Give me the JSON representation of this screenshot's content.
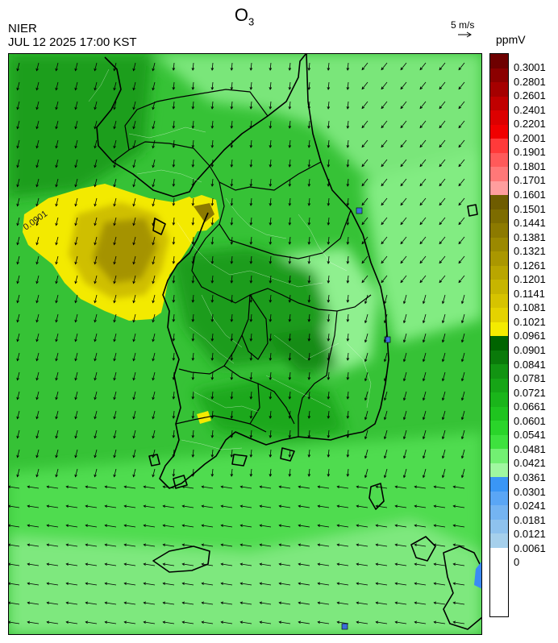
{
  "header": {
    "species_main": "O",
    "species_sub": "3",
    "source": "NIER",
    "datetime": "JUL 12 2025 17:00 KST"
  },
  "wind": {
    "scale_label": "5 m/s",
    "arrow_icon": "arrow-right-icon"
  },
  "colorbar": {
    "unit": "ppmV",
    "ticks": [
      "0.3001",
      "0.2801",
      "0.2601",
      "0.2401",
      "0.2201",
      "0.2001",
      "0.1901",
      "0.1801",
      "0.1701",
      "0.1601",
      "0.1501",
      "0.1441",
      "0.1381",
      "0.1321",
      "0.1261",
      "0.1201",
      "0.1141",
      "0.1081",
      "0.1021",
      "0.0961",
      "0.0901",
      "0.0841",
      "0.0781",
      "0.0721",
      "0.0661",
      "0.0601",
      "0.0541",
      "0.0481",
      "0.0421",
      "0.0361",
      "0.0301",
      "0.0241",
      "0.0181",
      "0.0121",
      "0.0061",
      "0"
    ],
    "colors": [
      "#6e0000",
      "#8b0000",
      "#a50000",
      "#c00000",
      "#dc0000",
      "#f00000",
      "#ff3a3a",
      "#ff5a5a",
      "#ff7878",
      "#ff9e9e",
      "#6e5c00",
      "#7d6c00",
      "#8c7a00",
      "#9b8900",
      "#aa9700",
      "#b9a600",
      "#c7b500",
      "#d6c300",
      "#e4d200",
      "#f4eb00",
      "#006400",
      "#0a7a0a",
      "#129412",
      "#16a516",
      "#1ab51a",
      "#1fc41f",
      "#2ad52a",
      "#3ee23e",
      "#72f072",
      "#a0f8a0",
      "#3a96f5",
      "#5aa6f5",
      "#74b4f2",
      "#8ec2ee",
      "#a6d0ec"
    ]
  },
  "map": {
    "contour_label": "0.0901"
  }
}
